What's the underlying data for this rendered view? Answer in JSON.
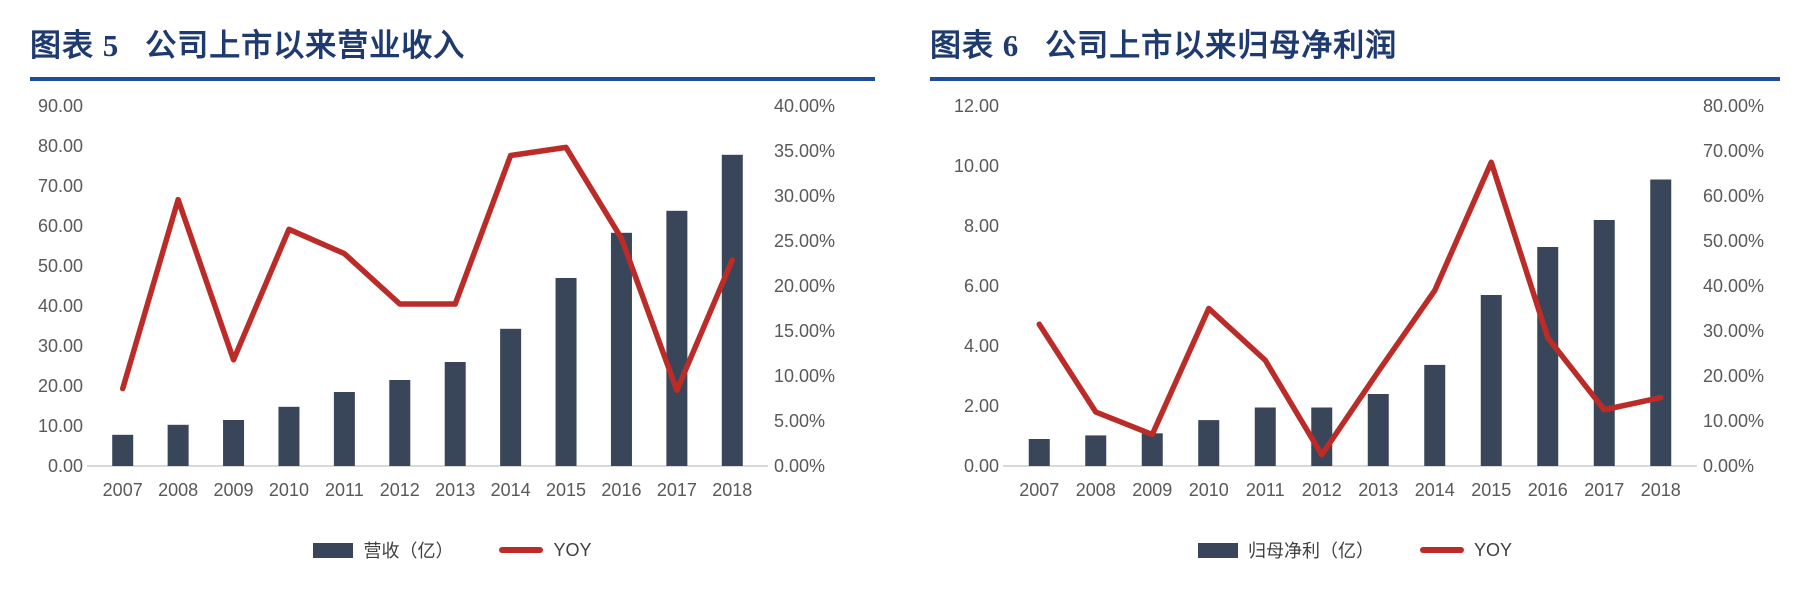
{
  "style": {
    "title_color": "#1E3A6E",
    "title_rule_color": "#1F4C94",
    "bar_color": "#394659",
    "line_color": "#BB2C28",
    "axis_text_color": "#595959",
    "axis_line_color": "#D9D9D9",
    "legend_text_color": "#3F3F3F",
    "background": "#ffffff"
  },
  "chart_data": [
    {
      "type": "bar+line",
      "title_label": "图表 5",
      "title_text": "公司上市以来营业收入",
      "categories": [
        "2007",
        "2008",
        "2009",
        "2010",
        "2011",
        "2012",
        "2013",
        "2014",
        "2015",
        "2016",
        "2017",
        "2018"
      ],
      "series": [
        {
          "name": "营收（亿）",
          "type": "bar",
          "axis": "left",
          "color": "#394659",
          "values": [
            7.8,
            10.3,
            11.5,
            14.8,
            18.5,
            21.5,
            26.0,
            34.3,
            47.0,
            58.3,
            63.8,
            77.8
          ]
        },
        {
          "name": "YOY",
          "type": "line",
          "axis": "right",
          "color": "#BB2C28",
          "unit": "%",
          "values": [
            8.6,
            29.6,
            11.8,
            26.3,
            23.6,
            18.0,
            18.0,
            34.5,
            35.4,
            25.3,
            8.4,
            22.9
          ]
        }
      ],
      "left_axis": {
        "min": 0,
        "max": 90,
        "ticks": [
          {
            "v": 0,
            "label": "0.00"
          },
          {
            "v": 10,
            "label": "10.00"
          },
          {
            "v": 20,
            "label": "20.00"
          },
          {
            "v": 30,
            "label": "30.00"
          },
          {
            "v": 40,
            "label": "40.00"
          },
          {
            "v": 50,
            "label": "50.00"
          },
          {
            "v": 60,
            "label": "60.00"
          },
          {
            "v": 70,
            "label": "70.00"
          },
          {
            "v": 80,
            "label": "80.00"
          },
          {
            "v": 90,
            "label": "90.00"
          }
        ]
      },
      "right_axis": {
        "min": 0,
        "max": 40,
        "ticks": [
          {
            "v": 0,
            "label": "0.00%"
          },
          {
            "v": 5,
            "label": "5.00%"
          },
          {
            "v": 10,
            "label": "10.00%"
          },
          {
            "v": 15,
            "label": "15.00%"
          },
          {
            "v": 20,
            "label": "20.00%"
          },
          {
            "v": 25,
            "label": "25.00%"
          },
          {
            "v": 30,
            "label": "30.00%"
          },
          {
            "v": 35,
            "label": "35.00%"
          },
          {
            "v": 40,
            "label": "40.00%"
          }
        ]
      },
      "grid": false,
      "legend_position": "bottom"
    },
    {
      "type": "bar+line",
      "title_label": "图表 6",
      "title_text": "公司上市以来归母净利润",
      "categories": [
        "2007",
        "2008",
        "2009",
        "2010",
        "2011",
        "2012",
        "2013",
        "2014",
        "2015",
        "2016",
        "2017",
        "2018"
      ],
      "series": [
        {
          "name": "归母净利（亿）",
          "type": "bar",
          "axis": "left",
          "color": "#394659",
          "values": [
            0.9,
            1.02,
            1.09,
            1.53,
            1.95,
            1.95,
            2.4,
            3.37,
            5.7,
            7.3,
            8.2,
            9.55
          ]
        },
        {
          "name": "YOY",
          "type": "line",
          "axis": "right",
          "color": "#BB2C28",
          "unit": "%",
          "values": [
            31.5,
            12.0,
            7.0,
            35.0,
            23.5,
            2.5,
            21.0,
            39.0,
            67.5,
            28.5,
            12.5,
            15.2
          ]
        }
      ],
      "left_axis": {
        "min": 0,
        "max": 12,
        "ticks": [
          {
            "v": 0,
            "label": "0.00"
          },
          {
            "v": 2,
            "label": "2.00"
          },
          {
            "v": 4,
            "label": "4.00"
          },
          {
            "v": 6,
            "label": "6.00"
          },
          {
            "v": 8,
            "label": "8.00"
          },
          {
            "v": 10,
            "label": "10.00"
          },
          {
            "v": 12,
            "label": "12.00"
          }
        ]
      },
      "right_axis": {
        "min": 0,
        "max": 80,
        "ticks": [
          {
            "v": 0,
            "label": "0.00%"
          },
          {
            "v": 10,
            "label": "10.00%"
          },
          {
            "v": 20,
            "label": "20.00%"
          },
          {
            "v": 30,
            "label": "30.00%"
          },
          {
            "v": 40,
            "label": "40.00%"
          },
          {
            "v": 50,
            "label": "50.00%"
          },
          {
            "v": 60,
            "label": "60.00%"
          },
          {
            "v": 70,
            "label": "70.00%"
          },
          {
            "v": 80,
            "label": "80.00%"
          }
        ]
      },
      "grid": false,
      "legend_position": "bottom"
    }
  ]
}
